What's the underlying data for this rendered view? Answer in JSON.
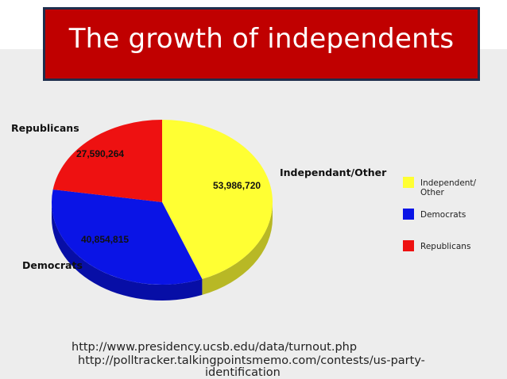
{
  "slide": {
    "title": "The growth of independents",
    "sources": [
      "http://www.presidency.ucsb.edu/data/turnout.php",
      "http://polltracker.talkingpointsmemo.com/contests/us-party-",
      "identification"
    ]
  },
  "chart_data": {
    "type": "pie",
    "slices": [
      {
        "category": "Independant/Other",
        "value": 53986720,
        "data_label": "53,986,720",
        "color": "#ffff33"
      },
      {
        "category": "Democrats",
        "value": 40854815,
        "data_label": "40,854,815",
        "color": "#0a14e6"
      },
      {
        "category": "Republicans",
        "value": 27590264,
        "data_label": "27,590,264",
        "color": "#ee1111"
      }
    ],
    "legend": {
      "placement": "right",
      "entries": [
        {
          "label_lines": [
            "Independent/",
            "Other"
          ],
          "color": "#ffff33"
        },
        {
          "label_lines": [
            "Democrats"
          ],
          "color": "#0a14e6"
        },
        {
          "label_lines": [
            "Republicans"
          ],
          "color": "#ee1111"
        }
      ]
    },
    "style": "3d"
  }
}
